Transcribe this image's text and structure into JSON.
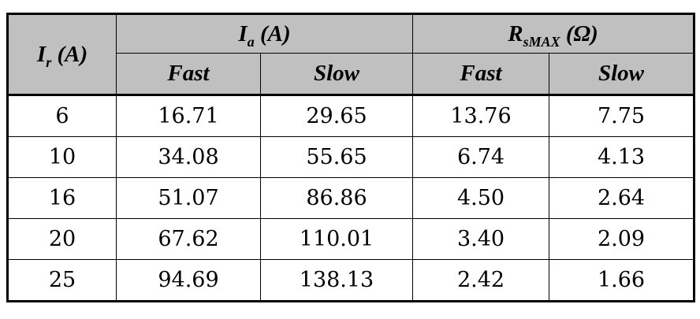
{
  "header": {
    "ir_label": "I",
    "ir_sub": "r",
    "ir_unit": " (A)",
    "ia_label": "I",
    "ia_sub": "a",
    "ia_unit": " (A)",
    "rs_label": "R",
    "rs_sub": "sMAX",
    "rs_unit": " (Ω)",
    "fast": "Fast",
    "slow": "Slow"
  },
  "rows": [
    {
      "ir": "6",
      "ia_fast": "16.71",
      "ia_slow": "29.65",
      "rs_fast": "13.76",
      "rs_slow": "7.75"
    },
    {
      "ir": "10",
      "ia_fast": "34.08",
      "ia_slow": "55.65",
      "rs_fast": "6.74",
      "rs_slow": "4.13"
    },
    {
      "ir": "16",
      "ia_fast": "51.07",
      "ia_slow": "86.86",
      "rs_fast": "4.50",
      "rs_slow": "2.64"
    },
    {
      "ir": "20",
      "ia_fast": "67.62",
      "ia_slow": "110.01",
      "rs_fast": "3.40",
      "rs_slow": "2.09"
    },
    {
      "ir": "25",
      "ia_fast": "94.69",
      "ia_slow": "138.13",
      "rs_fast": "2.42",
      "rs_slow": "1.66"
    }
  ]
}
